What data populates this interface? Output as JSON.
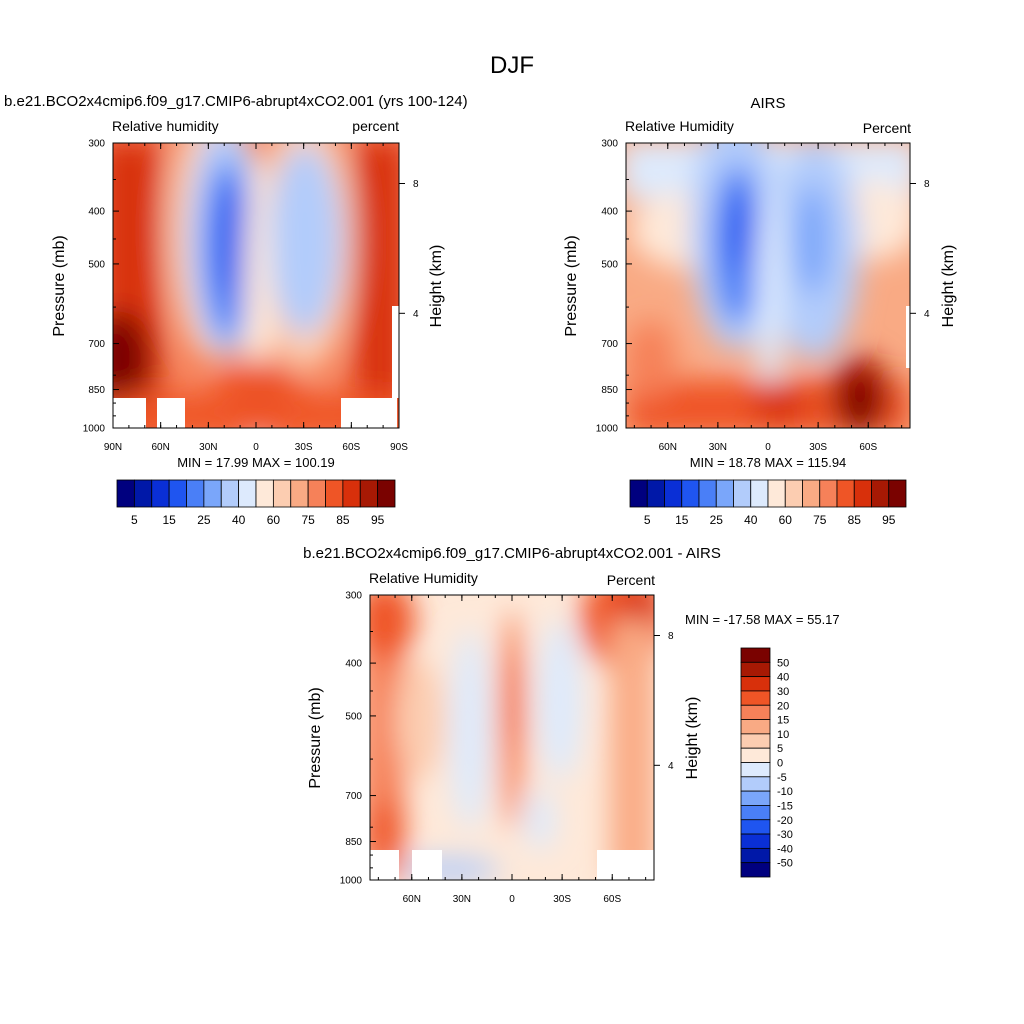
{
  "figure": {
    "title": "DJF"
  },
  "panels": [
    {
      "title": "b.e21.BCO2x4cmip6.f09_g17.CMIP6-abrupt4xCO2.001 (yrs 100-124)",
      "left_label": "Relative humidity",
      "right_label": "percent",
      "ylabel": "Pressure (mb)",
      "ylabel_right": "Height (km)",
      "stats": "MIN =  17.99  MAX = 100.19"
    },
    {
      "title": "AIRS",
      "left_label": "Relative Humidity",
      "right_label": "Percent",
      "ylabel": "Pressure (mb)",
      "ylabel_right": "Height (km)",
      "stats": "MIN =  18.78  MAX = 115.94"
    },
    {
      "title": "b.e21.BCO2x4cmip6.f09_g17.CMIP6-abrupt4xCO2.001 - AIRS",
      "left_label": "Relative Humidity",
      "right_label": "Percent",
      "ylabel": "Pressure (mb)",
      "ylabel_right": "Height (km)",
      "stats": "MIN = -17.58  MAX =  55.17"
    }
  ],
  "colorbars": {
    "relative_humidity": {
      "colors": [
        "#00007f",
        "#0018a8",
        "#0a2fd6",
        "#1f55f0",
        "#4a7ff7",
        "#7aa6fa",
        "#b2ccfb",
        "#ddeafd",
        "#fee9d9",
        "#fccdb1",
        "#f9aa84",
        "#f68159",
        "#ef5526",
        "#d8300b",
        "#a71904",
        "#7a0200"
      ],
      "labels": [
        "5",
        "15",
        "25",
        "40",
        "60",
        "75",
        "85",
        "95"
      ]
    },
    "difference": {
      "colors": [
        "#00007f",
        "#0018a8",
        "#0a2fd6",
        "#1f55f0",
        "#4a7ff7",
        "#7aa6fa",
        "#b2ccfb",
        "#ddeafd",
        "#fee9d9",
        "#fccdb1",
        "#f9aa84",
        "#f68159",
        "#ef5526",
        "#d8300b",
        "#a71904",
        "#7a0200"
      ],
      "labels": [
        "-50",
        "-40",
        "-30",
        "-20",
        "-15",
        "-10",
        "-5",
        "0",
        "5",
        "10",
        "15",
        "20",
        "30",
        "40",
        "50"
      ]
    }
  },
  "chart_data": [
    {
      "type": "heatmap",
      "title": "b.e21.BCO2x4cmip6.f09_g17.CMIP6-abrupt4xCO2.001 (yrs 100-124)",
      "subtitle_left": "Relative humidity",
      "subtitle_right": "percent",
      "xlabel": "",
      "ylabel": "Pressure (mb)",
      "ylabel_right": "Height (km)",
      "x_ticks": [
        "90N",
        "60N",
        "30N",
        "0",
        "30S",
        "60S",
        "90S"
      ],
      "y_ticks": [
        "300",
        "400",
        "500",
        "700",
        "850",
        "1000"
      ],
      "y_ticks_right": [
        "8",
        "4"
      ],
      "xlim": [
        "90N",
        "90S"
      ],
      "ylim": [
        1000,
        300
      ],
      "y_scale": "log",
      "min": 17.99,
      "max": 100.19,
      "units": "percent",
      "contour_levels": [
        5,
        15,
        25,
        40,
        60,
        75,
        85,
        95
      ],
      "colorbar_labels": [
        "5",
        "15",
        "25",
        "40",
        "60",
        "75",
        "85",
        "95"
      ]
    },
    {
      "type": "heatmap",
      "title": "AIRS",
      "subtitle_left": "Relative Humidity",
      "subtitle_right": "Percent",
      "xlabel": "",
      "ylabel": "Pressure (mb)",
      "ylabel_right": "Height (km)",
      "x_ticks": [
        "60N",
        "30N",
        "0",
        "30S",
        "60S"
      ],
      "y_ticks": [
        "300",
        "400",
        "500",
        "700",
        "850",
        "1000"
      ],
      "y_ticks_right": [
        "8",
        "4"
      ],
      "ylim": [
        1000,
        300
      ],
      "y_scale": "log",
      "min": 18.78,
      "max": 115.94,
      "units": "Percent",
      "contour_levels": [
        5,
        15,
        25,
        40,
        60,
        75,
        85,
        95
      ],
      "colorbar_labels": [
        "5",
        "15",
        "25",
        "40",
        "60",
        "75",
        "85",
        "95"
      ]
    },
    {
      "type": "heatmap",
      "title": "b.e21.BCO2x4cmip6.f09_g17.CMIP6-abrupt4xCO2.001 - AIRS",
      "subtitle_left": "Relative Humidity",
      "subtitle_right": "Percent",
      "xlabel": "",
      "ylabel": "Pressure (mb)",
      "ylabel_right": "Height (km)",
      "x_ticks": [
        "60N",
        "30N",
        "0",
        "30S",
        "60S"
      ],
      "y_ticks": [
        "300",
        "400",
        "500",
        "700",
        "850",
        "1000"
      ],
      "y_ticks_right": [
        "8",
        "4"
      ],
      "ylim": [
        1000,
        300
      ],
      "y_scale": "log",
      "min": -17.58,
      "max": 55.17,
      "units": "Percent",
      "contour_levels": [
        -50,
        -40,
        -30,
        -20,
        -15,
        -10,
        -5,
        0,
        5,
        10,
        15,
        20,
        30,
        40,
        50
      ],
      "colorbar_labels": [
        "-50",
        "-40",
        "-30",
        "-20",
        "-15",
        "-10",
        "-5",
        "0",
        "5",
        "10",
        "15",
        "20",
        "30",
        "40",
        "50"
      ]
    }
  ]
}
